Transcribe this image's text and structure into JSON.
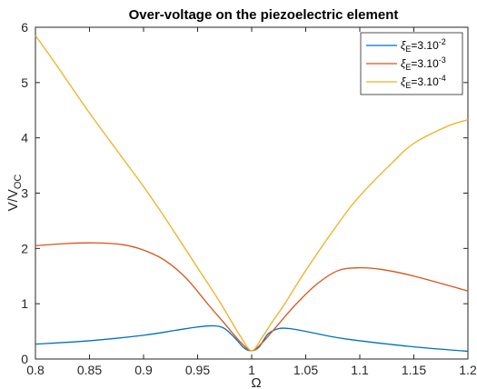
{
  "chart_data": {
    "type": "line",
    "title": "Over-voltage on the piezoelectric element",
    "xlabel": "Ω",
    "ylabel_main": "V/V",
    "ylabel_sub": "OC",
    "xlim": [
      0.8,
      1.2
    ],
    "ylim": [
      0,
      6
    ],
    "xticks": [
      0.8,
      0.85,
      0.9,
      0.95,
      1,
      1.05,
      1.1,
      1.15,
      1.2
    ],
    "xtick_labels": [
      "0.8",
      "0.85",
      "0.9",
      "0.95",
      "1",
      "1.05",
      "1.1",
      "1.15",
      "1.2"
    ],
    "yticks": [
      0,
      1,
      2,
      3,
      4,
      5,
      6
    ],
    "ytick_labels": [
      "0",
      "1",
      "2",
      "3",
      "4",
      "5",
      "6"
    ],
    "grid": false,
    "legend_position": "top-right",
    "series": [
      {
        "legend_symbol": "ξ",
        "legend_sub": "E",
        "legend_base": "=3.10",
        "legend_exp": "-2",
        "color": "#0072BD",
        "x": [
          0.8,
          0.85,
          0.9,
          0.93,
          0.95,
          0.965,
          0.975,
          0.985,
          0.993,
          1.0,
          1.007,
          1.015,
          1.025,
          1.035,
          1.05,
          1.075,
          1.1,
          1.15,
          1.2
        ],
        "y": [
          0.27,
          0.33,
          0.43,
          0.52,
          0.58,
          0.6,
          0.55,
          0.37,
          0.2,
          0.15,
          0.22,
          0.45,
          0.55,
          0.55,
          0.5,
          0.4,
          0.33,
          0.22,
          0.14
        ]
      },
      {
        "legend_symbol": "ξ",
        "legend_sub": "E",
        "legend_base": "=3.10",
        "legend_exp": "-3",
        "color": "#D95319",
        "x": [
          0.8,
          0.83,
          0.855,
          0.88,
          0.9,
          0.92,
          0.94,
          0.96,
          0.975,
          0.99,
          1.0,
          1.01,
          1.02,
          1.04,
          1.06,
          1.08,
          1.1,
          1.12,
          1.15,
          1.2
        ],
        "y": [
          2.05,
          2.09,
          2.1,
          2.07,
          1.97,
          1.78,
          1.45,
          0.98,
          0.64,
          0.3,
          0.15,
          0.3,
          0.52,
          0.97,
          1.35,
          1.6,
          1.65,
          1.62,
          1.5,
          1.23
        ]
      },
      {
        "legend_symbol": "ξ",
        "legend_sub": "E",
        "legend_base": "=3.10",
        "legend_exp": "-4",
        "color": "#EDB120",
        "x": [
          0.8,
          0.82,
          0.85,
          0.88,
          0.9,
          0.92,
          0.95,
          0.97,
          0.98,
          0.99,
          1.0,
          1.01,
          1.02,
          1.03,
          1.05,
          1.08,
          1.1,
          1.13,
          1.15,
          1.18,
          1.2
        ],
        "y": [
          5.85,
          5.3,
          4.45,
          3.65,
          3.12,
          2.55,
          1.65,
          1.05,
          0.72,
          0.4,
          0.15,
          0.4,
          0.7,
          0.98,
          1.6,
          2.45,
          2.95,
          3.55,
          3.9,
          4.2,
          4.33
        ]
      }
    ]
  }
}
